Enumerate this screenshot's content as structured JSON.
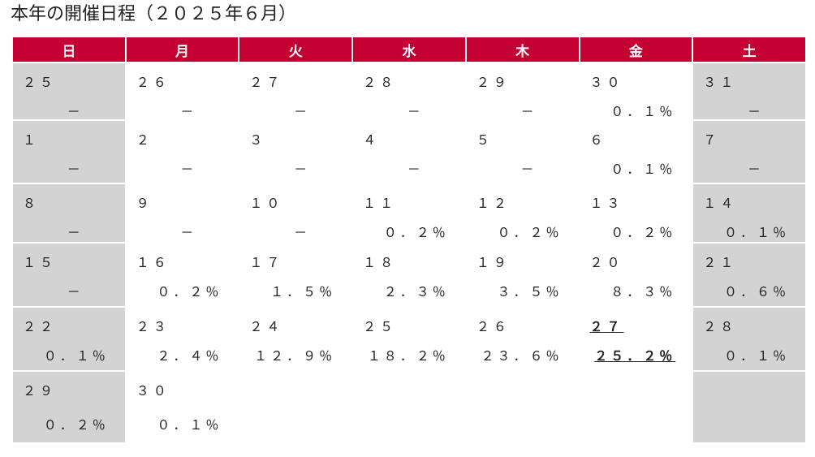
{
  "page_title": "本年の開催日程（２０２５年６月）",
  "weekday_headers": [
    "日",
    "月",
    "火",
    "水",
    "木",
    "金",
    "土"
  ],
  "weeks": [
    [
      {
        "day": "２５",
        "value": "－"
      },
      {
        "day": "２６",
        "value": "－"
      },
      {
        "day": "２７",
        "value": "－"
      },
      {
        "day": "２８",
        "value": "－"
      },
      {
        "day": "２９",
        "value": "－"
      },
      {
        "day": "３０",
        "value": "０．１％"
      },
      {
        "day": "３１",
        "value": "－"
      }
    ],
    [
      {
        "day": "１",
        "value": "－"
      },
      {
        "day": "２",
        "value": "－"
      },
      {
        "day": "３",
        "value": "－"
      },
      {
        "day": "４",
        "value": "－"
      },
      {
        "day": "５",
        "value": "－"
      },
      {
        "day": "６",
        "value": "０．１％"
      },
      {
        "day": "７",
        "value": "－"
      }
    ],
    [
      {
        "day": "８",
        "value": "－"
      },
      {
        "day": "９",
        "value": "－"
      },
      {
        "day": "１０",
        "value": "－"
      },
      {
        "day": "１１",
        "value": "０．２％"
      },
      {
        "day": "１２",
        "value": "０．２％"
      },
      {
        "day": "１３",
        "value": "０．２％"
      },
      {
        "day": "１４",
        "value": "０．１％"
      }
    ],
    [
      {
        "day": "１５",
        "value": "－"
      },
      {
        "day": "１６",
        "value": "０．２％"
      },
      {
        "day": "１７",
        "value": "１．５％"
      },
      {
        "day": "１８",
        "value": "２．３％"
      },
      {
        "day": "１９",
        "value": "３．５％"
      },
      {
        "day": "２０",
        "value": "８．３％"
      },
      {
        "day": "２１",
        "value": "０．６％"
      }
    ],
    [
      {
        "day": "２２",
        "value": "０．１％"
      },
      {
        "day": "２３",
        "value": "２．４％"
      },
      {
        "day": "２４",
        "value": "１２．９％"
      },
      {
        "day": "２５",
        "value": "１８．２％"
      },
      {
        "day": "２６",
        "value": "２３．６％"
      },
      {
        "day": "２７",
        "value": "２５．２％"
      },
      {
        "day": "２８",
        "value": "０．１％"
      }
    ],
    [
      {
        "day": "２９",
        "value": "０．２％"
      },
      {
        "day": "３０",
        "value": "０．１％"
      },
      {
        "day": "",
        "value": ""
      },
      {
        "day": "",
        "value": ""
      },
      {
        "day": "",
        "value": ""
      },
      {
        "day": "",
        "value": ""
      },
      {
        "day": "",
        "value": ""
      }
    ]
  ],
  "colors": {
    "header_bg": "#c50032",
    "header_text": "#ffffff",
    "weekend_bg": "#d3d3d3",
    "weekday_bg": "#ffffff"
  }
}
